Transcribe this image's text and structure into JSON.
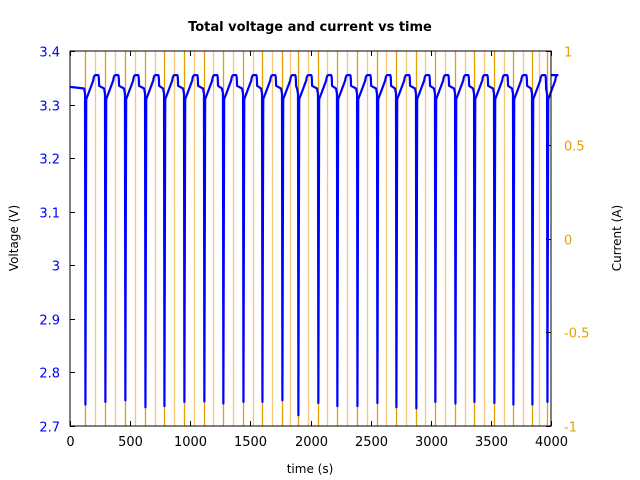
{
  "chart_data": {
    "type": "line",
    "title": "Total voltage and current vs time",
    "xlabel": "time (s)",
    "ylabel": "Voltage (V)",
    "y2label": "Current (A)",
    "xlim": [
      0,
      4000
    ],
    "ylim": [
      2.7,
      3.4
    ],
    "y2lim": [
      -1,
      1
    ],
    "x_ticks": [
      0,
      500,
      1000,
      1500,
      2000,
      2500,
      3000,
      3500,
      4000
    ],
    "x_tick_labels": [
      "0",
      "500",
      "1000",
      "1500",
      "2000",
      "2500",
      "3000",
      "3500",
      "4000"
    ],
    "y_ticks": [
      2.7,
      2.8,
      2.9,
      3.0,
      3.1,
      3.2,
      3.3,
      3.4
    ],
    "y_tick_labels": [
      "2.7",
      "2.8",
      "2.9",
      "3",
      "3.1",
      "3.2",
      "3.3",
      "3.4"
    ],
    "y2_ticks": [
      -1,
      -0.5,
      0,
      0.5,
      1
    ],
    "y2_tick_labels": [
      "-1",
      "-0.5",
      "0",
      "0.5",
      "1"
    ],
    "grid": false,
    "legend": null,
    "colors": {
      "voltage": "#0000ff",
      "current": "#e69f00",
      "current_light": "#f3c77a",
      "axis": "#000000"
    },
    "series": [
      {
        "name": "Voltage",
        "axis": "left",
        "unit": "V",
        "rest_voltage": 3.33,
        "charge_peak_voltage": 3.355,
        "post_charge_voltage": 3.335,
        "pulse_start_times": [
          125,
          291,
          457,
          624,
          782,
          948,
          1114,
          1272,
          1439,
          1597,
          1763,
          1896,
          2062,
          2220,
          2387,
          2553,
          2711,
          2877,
          3035,
          3202,
          3360,
          3526,
          3684,
          3842,
          3967
        ],
        "pulse_min_voltages": [
          2.74,
          2.745,
          2.748,
          2.735,
          2.737,
          2.745,
          2.746,
          2.742,
          2.745,
          2.745,
          2.748,
          2.72,
          2.743,
          2.737,
          2.737,
          2.743,
          2.735,
          2.733,
          2.745,
          2.742,
          2.745,
          2.743,
          2.74,
          2.74,
          2.745
        ],
        "discharge_duration_s": 75
      },
      {
        "name": "Current",
        "axis": "right",
        "unit": "A",
        "values_between": [
          -1,
          1
        ],
        "switch_times": [
          125,
          208,
          291,
          374,
          457,
          540,
          624,
          703,
          782,
          865,
          948,
          1031,
          1114,
          1193,
          1272,
          1355,
          1439,
          1518,
          1597,
          1680,
          1763,
          1829,
          1896,
          1979,
          2062,
          2141,
          2220,
          2303,
          2387,
          2470,
          2553,
          2632,
          2711,
          2794,
          2877,
          2956,
          3035,
          3118,
          3202,
          3281,
          3360,
          3443,
          3526,
          3605,
          3684,
          3763,
          3842,
          3904,
          3967
        ]
      }
    ]
  }
}
